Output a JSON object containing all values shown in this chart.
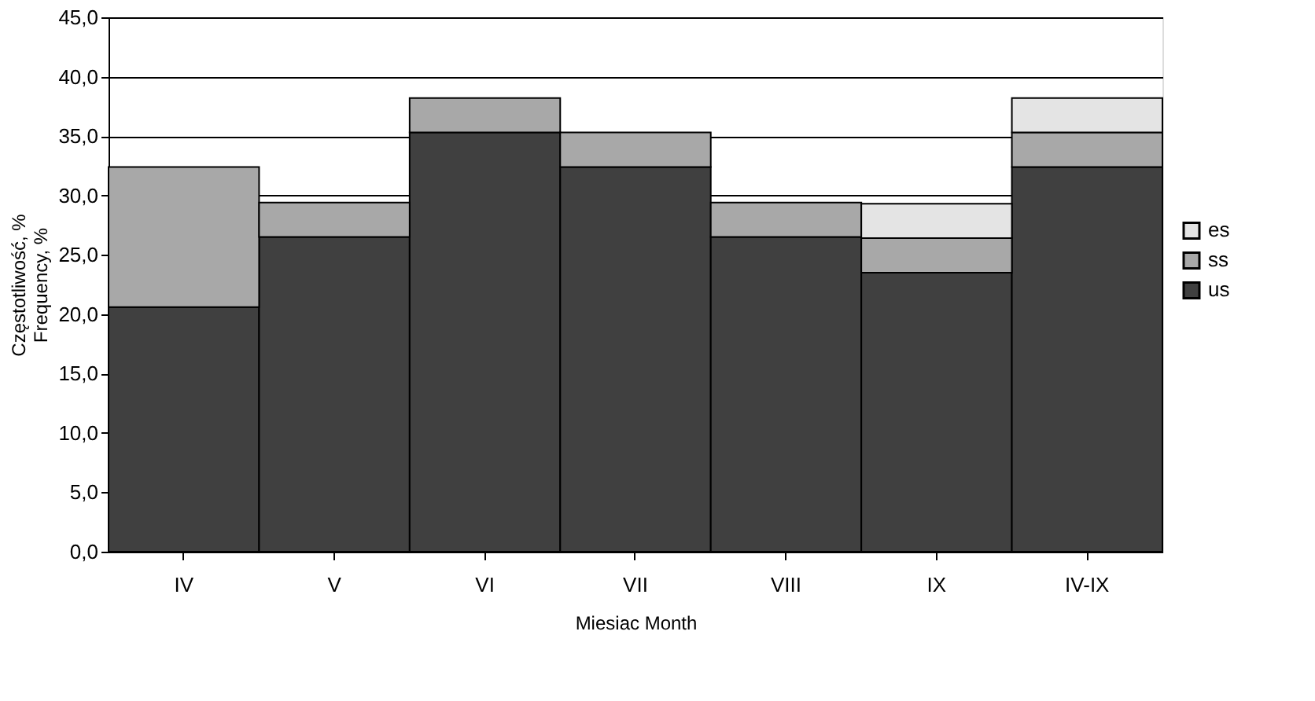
{
  "chart_data": {
    "type": "bar",
    "stacked": true,
    "xlabel": "Miesiac Month",
    "ylabel": "Częstotliwość, %\nFrequency, %",
    "categories": [
      "IV",
      "V",
      "VI",
      "VII",
      "VIII",
      "IX",
      "IV-IX"
    ],
    "series": [
      {
        "name": "us",
        "color": "#404040",
        "values": [
          20.6,
          26.5,
          35.3,
          32.4,
          26.5,
          23.5,
          32.4
        ]
      },
      {
        "name": "ss",
        "color": "#a8a8a8",
        "values": [
          11.8,
          2.9,
          2.9,
          2.9,
          2.9,
          2.9,
          2.9
        ]
      },
      {
        "name": "es",
        "color": "#e4e4e4",
        "values": [
          null,
          null,
          null,
          null,
          null,
          2.9,
          2.9
        ]
      }
    ],
    "ylim": [
      0,
      45
    ],
    "yticks": [
      {
        "value": 0,
        "label": "0,0"
      },
      {
        "value": 5,
        "label": "5,0"
      },
      {
        "value": 10,
        "label": "10,0"
      },
      {
        "value": 15,
        "label": "15,0"
      },
      {
        "value": 20,
        "label": "20,0"
      },
      {
        "value": 25,
        "label": "25,0"
      },
      {
        "value": 30,
        "label": "30,0"
      },
      {
        "value": 35,
        "label": "35,0"
      },
      {
        "value": 40,
        "label": "40,0"
      },
      {
        "value": 45,
        "label": "45,0"
      }
    ],
    "grid": "y",
    "legend": "right"
  }
}
